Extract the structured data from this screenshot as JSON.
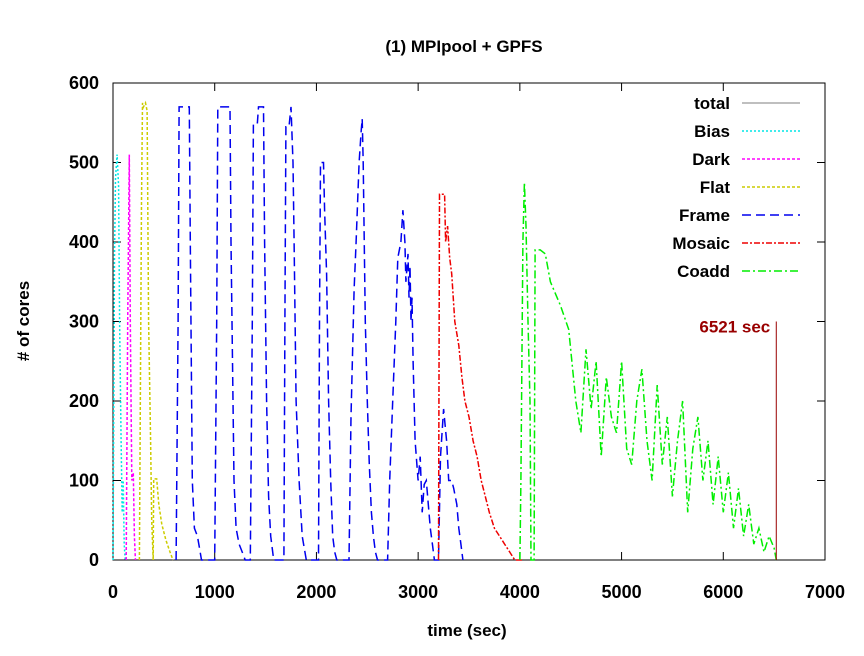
{
  "chart_data": {
    "type": "line",
    "title": "(1) MPIpool + GPFS",
    "xlabel": "time (sec)",
    "ylabel": "# of cores",
    "xlim": [
      0,
      7000
    ],
    "ylim": [
      0,
      600
    ],
    "xticks": [
      0,
      1000,
      2000,
      3000,
      4000,
      5000,
      6000,
      7000
    ],
    "yticks": [
      0,
      100,
      200,
      300,
      400,
      500,
      600
    ],
    "grid": false,
    "legend_position": "top-right",
    "annotation": {
      "text": "6521 sec",
      "x": 6521,
      "color": "#990000"
    },
    "series": [
      {
        "name": "total",
        "color": "#aaaaaa",
        "dash": "",
        "points": []
      },
      {
        "name": "Bias",
        "color": "#00e5e5",
        "dash": "2,2",
        "points": [
          [
            0,
            0
          ],
          [
            15,
            380
          ],
          [
            25,
            480
          ],
          [
            40,
            510
          ],
          [
            55,
            470
          ],
          [
            65,
            300
          ],
          [
            80,
            150
          ],
          [
            90,
            60
          ],
          [
            100,
            100
          ],
          [
            110,
            20
          ],
          [
            120,
            0
          ]
        ]
      },
      {
        "name": "Dark",
        "color": "#ff00ff",
        "dash": "3,2",
        "points": [
          [
            130,
            0
          ],
          [
            145,
            300
          ],
          [
            160,
            510
          ],
          [
            170,
            300
          ],
          [
            185,
            100
          ],
          [
            200,
            110
          ],
          [
            210,
            30
          ],
          [
            220,
            0
          ]
        ]
      },
      {
        "name": "Flat",
        "color": "#cccc00",
        "dash": "3,2",
        "points": [
          [
            260,
            0
          ],
          [
            280,
            450
          ],
          [
            290,
            575
          ],
          [
            300,
            570
          ],
          [
            320,
            575
          ],
          [
            335,
            565
          ],
          [
            350,
            300
          ],
          [
            370,
            150
          ],
          [
            380,
            50
          ],
          [
            395,
            0
          ],
          [
            400,
            102
          ],
          [
            430,
            102
          ],
          [
            450,
            70
          ],
          [
            480,
            45
          ],
          [
            520,
            25
          ],
          [
            560,
            10
          ],
          [
            590,
            0
          ]
        ]
      },
      {
        "name": "Frame",
        "color": "#0000ee",
        "dash": "9,5",
        "points": [
          [
            620,
            0
          ],
          [
            640,
            300
          ],
          [
            650,
            570
          ],
          [
            750,
            570
          ],
          [
            760,
            400
          ],
          [
            780,
            100
          ],
          [
            800,
            40
          ],
          [
            830,
            30
          ],
          [
            850,
            15
          ],
          [
            870,
            0
          ],
          [
            920,
            0
          ],
          [
            1000,
            0
          ],
          [
            1020,
            300
          ],
          [
            1030,
            570
          ],
          [
            1150,
            570
          ],
          [
            1160,
            400
          ],
          [
            1190,
            100
          ],
          [
            1210,
            40
          ],
          [
            1240,
            20
          ],
          [
            1270,
            10
          ],
          [
            1300,
            0
          ],
          [
            1350,
            0
          ],
          [
            1370,
            300
          ],
          [
            1380,
            550
          ],
          [
            1420,
            550
          ],
          [
            1430,
            570
          ],
          [
            1480,
            570
          ],
          [
            1490,
            400
          ],
          [
            1510,
            200
          ],
          [
            1530,
            80
          ],
          [
            1550,
            30
          ],
          [
            1580,
            0
          ],
          [
            1680,
            0
          ],
          [
            1690,
            300
          ],
          [
            1700,
            545
          ],
          [
            1730,
            545
          ],
          [
            1750,
            570
          ],
          [
            1770,
            500
          ],
          [
            1780,
            400
          ],
          [
            1800,
            200
          ],
          [
            1830,
            100
          ],
          [
            1860,
            30
          ],
          [
            1900,
            0
          ],
          [
            2020,
            0
          ],
          [
            2030,
            300
          ],
          [
            2040,
            500
          ],
          [
            2070,
            500
          ],
          [
            2080,
            440
          ],
          [
            2100,
            360
          ],
          [
            2120,
            200
          ],
          [
            2140,
            100
          ],
          [
            2160,
            30
          ],
          [
            2180,
            10
          ],
          [
            2200,
            0
          ],
          [
            2320,
            0
          ],
          [
            2340,
            180
          ],
          [
            2370,
            340
          ],
          [
            2390,
            400
          ],
          [
            2420,
            500
          ],
          [
            2440,
            540
          ],
          [
            2450,
            555
          ],
          [
            2460,
            500
          ],
          [
            2480,
            300
          ],
          [
            2500,
            200
          ],
          [
            2520,
            120
          ],
          [
            2540,
            60
          ],
          [
            2560,
            30
          ],
          [
            2580,
            10
          ],
          [
            2600,
            0
          ],
          [
            2700,
            0
          ],
          [
            2720,
            100
          ],
          [
            2750,
            200
          ],
          [
            2780,
            300
          ],
          [
            2800,
            380
          ],
          [
            2830,
            400
          ],
          [
            2850,
            440
          ],
          [
            2870,
            400
          ],
          [
            2880,
            350
          ],
          [
            2900,
            385
          ],
          [
            2910,
            330
          ],
          [
            2920,
            370
          ],
          [
            2930,
            300
          ],
          [
            2940,
            330
          ],
          [
            2950,
            250
          ],
          [
            2970,
            150
          ],
          [
            3000,
            100
          ],
          [
            3020,
            130
          ],
          [
            3040,
            60
          ],
          [
            3060,
            95
          ],
          [
            3080,
            100
          ],
          [
            3100,
            70
          ],
          [
            3120,
            40
          ],
          [
            3140,
            20
          ],
          [
            3160,
            0
          ],
          [
            3200,
            0
          ],
          [
            3220,
            130
          ],
          [
            3250,
            190
          ],
          [
            3280,
            150
          ],
          [
            3300,
            100
          ],
          [
            3330,
            100
          ],
          [
            3350,
            90
          ],
          [
            3380,
            70
          ],
          [
            3400,
            40
          ],
          [
            3420,
            20
          ],
          [
            3440,
            0
          ]
        ]
      },
      {
        "name": "Mosaic",
        "color": "#ee0000",
        "dash": "6,2,2,2",
        "points": [
          [
            3200,
            0
          ],
          [
            3210,
            460
          ],
          [
            3260,
            460
          ],
          [
            3270,
            400
          ],
          [
            3290,
            420
          ],
          [
            3310,
            380
          ],
          [
            3330,
            360
          ],
          [
            3360,
            300
          ],
          [
            3400,
            270
          ],
          [
            3430,
            230
          ],
          [
            3460,
            200
          ],
          [
            3500,
            180
          ],
          [
            3540,
            150
          ],
          [
            3580,
            130
          ],
          [
            3620,
            100
          ],
          [
            3660,
            80
          ],
          [
            3700,
            60
          ],
          [
            3750,
            40
          ],
          [
            3800,
            30
          ],
          [
            3850,
            20
          ],
          [
            3900,
            10
          ],
          [
            3950,
            0
          ],
          [
            4020,
            0
          ]
        ]
      },
      {
        "name": "Coadd",
        "color": "#00ee00",
        "dash": "8,3,2,3",
        "points": [
          [
            4000,
            0
          ],
          [
            4010,
            100
          ],
          [
            4030,
            400
          ],
          [
            4045,
            475
          ],
          [
            4060,
            420
          ],
          [
            4080,
            300
          ],
          [
            4100,
            200
          ],
          [
            4110,
            0
          ],
          [
            4140,
            0
          ],
          [
            4150,
            390
          ],
          [
            4200,
            390
          ],
          [
            4250,
            385
          ],
          [
            4300,
            350
          ],
          [
            4400,
            320
          ],
          [
            4480,
            290
          ],
          [
            4550,
            200
          ],
          [
            4600,
            160
          ],
          [
            4650,
            265
          ],
          [
            4700,
            190
          ],
          [
            4750,
            250
          ],
          [
            4800,
            130
          ],
          [
            4850,
            230
          ],
          [
            4900,
            180
          ],
          [
            4950,
            160
          ],
          [
            5000,
            250
          ],
          [
            5050,
            140
          ],
          [
            5100,
            120
          ],
          [
            5150,
            200
          ],
          [
            5200,
            240
          ],
          [
            5250,
            150
          ],
          [
            5300,
            100
          ],
          [
            5350,
            220
          ],
          [
            5400,
            120
          ],
          [
            5450,
            180
          ],
          [
            5500,
            80
          ],
          [
            5550,
            150
          ],
          [
            5600,
            200
          ],
          [
            5650,
            60
          ],
          [
            5700,
            140
          ],
          [
            5750,
            180
          ],
          [
            5800,
            100
          ],
          [
            5850,
            150
          ],
          [
            5900,
            70
          ],
          [
            5950,
            130
          ],
          [
            6000,
            60
          ],
          [
            6050,
            110
          ],
          [
            6100,
            40
          ],
          [
            6150,
            90
          ],
          [
            6200,
            30
          ],
          [
            6250,
            70
          ],
          [
            6300,
            20
          ],
          [
            6350,
            40
          ],
          [
            6400,
            10
          ],
          [
            6450,
            30
          ],
          [
            6500,
            15
          ],
          [
            6521,
            0
          ]
        ]
      }
    ]
  }
}
